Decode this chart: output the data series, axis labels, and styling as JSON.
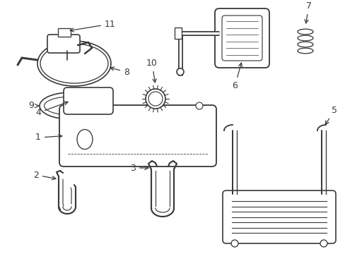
{
  "background_color": "#ffffff",
  "line_color": "#3a3a3a",
  "fig_width": 4.89,
  "fig_height": 3.6,
  "dpi": 100
}
